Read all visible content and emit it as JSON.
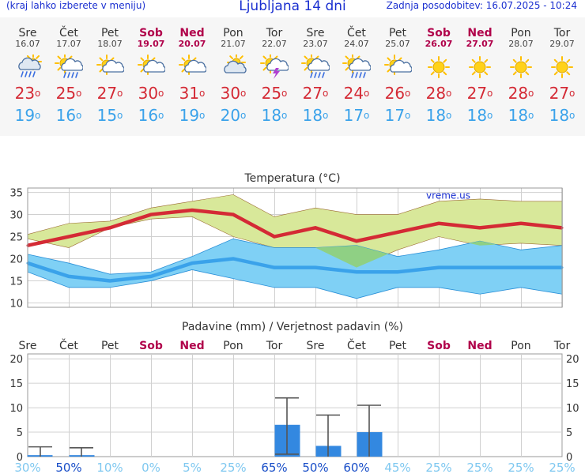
{
  "header": {
    "left": "(kraj lahko izberete v meniju)",
    "title": "Ljubljana 14 dni",
    "right": "Zadnja posodobitev: 16.07.2025 - 10:24"
  },
  "days": [
    {
      "name": "Sre",
      "date": "16.07",
      "weekend": false,
      "icon": "rain-sun-cloud-icon",
      "tmax": "23",
      "tmin": "19"
    },
    {
      "name": "Čet",
      "date": "17.07",
      "weekend": false,
      "icon": "sun-rain-cloud-icon",
      "tmax": "25",
      "tmin": "16"
    },
    {
      "name": "Pet",
      "date": "18.07",
      "weekend": false,
      "icon": "sun-cloud-icon",
      "tmax": "27",
      "tmin": "15"
    },
    {
      "name": "Sob",
      "date": "19.07",
      "weekend": true,
      "icon": "sun-cloud-icon",
      "tmax": "30",
      "tmin": "16"
    },
    {
      "name": "Ned",
      "date": "20.07",
      "weekend": true,
      "icon": "sun-cloud-icon",
      "tmax": "31",
      "tmin": "19"
    },
    {
      "name": "Pon",
      "date": "21.07",
      "weekend": false,
      "icon": "cloud-sun-icon",
      "tmax": "30",
      "tmin": "20"
    },
    {
      "name": "Tor",
      "date": "22.07",
      "weekend": false,
      "icon": "thunderstorm-icon",
      "tmax": "25",
      "tmin": "18"
    },
    {
      "name": "Sre",
      "date": "23.07",
      "weekend": false,
      "icon": "sun-rain-cloud-icon",
      "tmax": "27",
      "tmin": "18"
    },
    {
      "name": "Čet",
      "date": "24.07",
      "weekend": false,
      "icon": "sun-rain-cloud-icon",
      "tmax": "24",
      "tmin": "17"
    },
    {
      "name": "Pet",
      "date": "25.07",
      "weekend": false,
      "icon": "sun-cloud-icon",
      "tmax": "26",
      "tmin": "17"
    },
    {
      "name": "Sob",
      "date": "26.07",
      "weekend": true,
      "icon": "sun-icon",
      "tmax": "28",
      "tmin": "18"
    },
    {
      "name": "Ned",
      "date": "27.07",
      "weekend": true,
      "icon": "sun-icon",
      "tmax": "27",
      "tmin": "18"
    },
    {
      "name": "Pon",
      "date": "28.07",
      "weekend": false,
      "icon": "sun-icon",
      "tmax": "28",
      "tmin": "18"
    },
    {
      "name": "Tor",
      "date": "29.07",
      "weekend": false,
      "icon": "sun-icon",
      "tmax": "27",
      "tmin": "18"
    }
  ],
  "degree_symbol": "o",
  "colors": {
    "max": "#d42a35",
    "min": "#3aa2ea",
    "max_band": "#d8e89a",
    "min_band": "#7fd0f5",
    "overlap": "#8fd084",
    "weekend": "#b0004a",
    "bar": "#3388e0",
    "prob_high": "#1a4fc8",
    "prob_low": "#7fc8f0"
  },
  "chart_data": [
    {
      "type": "line",
      "title": "Temperatura (°C)",
      "watermark": "vreme.us",
      "categories": [
        "Sre",
        "Čet",
        "Pet",
        "Sob",
        "Ned",
        "Pon",
        "Tor",
        "Sre",
        "Čet",
        "Pet",
        "Sob",
        "Ned",
        "Pon",
        "Tor"
      ],
      "ylim": [
        9,
        36
      ],
      "yticks": [
        10,
        15,
        20,
        25,
        30,
        35
      ],
      "series": [
        {
          "values": [
            23,
            25,
            27,
            30,
            31,
            30,
            25,
            27,
            24,
            26,
            28,
            27,
            28,
            27
          ]
        },
        {
          "values": [
            19,
            16,
            15,
            16,
            19,
            20,
            18,
            18,
            17,
            17,
            18,
            18,
            18,
            18
          ]
        }
      ],
      "bands": [
        {
          "lower": [
            24.5,
            22.5,
            27,
            29,
            29.5,
            25,
            22.5,
            22.5,
            18,
            22,
            25,
            23,
            23.5,
            23
          ],
          "upper": [
            25.5,
            28,
            28.5,
            31.5,
            33,
            34.5,
            29.5,
            31.5,
            30,
            30,
            33,
            33.5,
            33,
            33
          ]
        },
        {
          "lower": [
            17,
            13.5,
            13.5,
            15,
            17.5,
            15.5,
            13.5,
            13.5,
            11,
            13.5,
            13.5,
            12,
            13.5,
            12
          ],
          "upper": [
            21,
            19,
            16.5,
            17,
            20.5,
            24.5,
            22.5,
            22.5,
            23,
            20.5,
            22,
            24,
            22,
            23
          ]
        }
      ]
    },
    {
      "type": "bar",
      "title": "Padavine (mm) / Verjetnost padavin (%)",
      "categories": [
        "Sre",
        "Čet",
        "Pet",
        "Sob",
        "Ned",
        "Pon",
        "Tor",
        "Sre",
        "Čet",
        "Pet",
        "Sob",
        "Ned",
        "Pon",
        "Tor"
      ],
      "ylim": [
        0,
        21
      ],
      "yticks": [
        0,
        5,
        10,
        15,
        20
      ],
      "values": [
        0.3,
        0.3,
        0,
        0,
        0,
        0,
        6.5,
        2.2,
        5.0,
        0,
        0,
        0,
        0,
        0
      ],
      "error_low": [
        0,
        0,
        null,
        null,
        null,
        null,
        0.5,
        0,
        0,
        null,
        null,
        null,
        null,
        null
      ],
      "error_high": [
        2.0,
        1.8,
        null,
        null,
        null,
        null,
        12.0,
        8.5,
        10.5,
        null,
        null,
        null,
        null,
        null
      ],
      "probability": [
        "30%",
        "50%",
        "10%",
        "0%",
        "5%",
        "25%",
        "65%",
        "50%",
        "60%",
        "45%",
        "25%",
        "25%",
        "25%",
        "25%"
      ]
    }
  ]
}
